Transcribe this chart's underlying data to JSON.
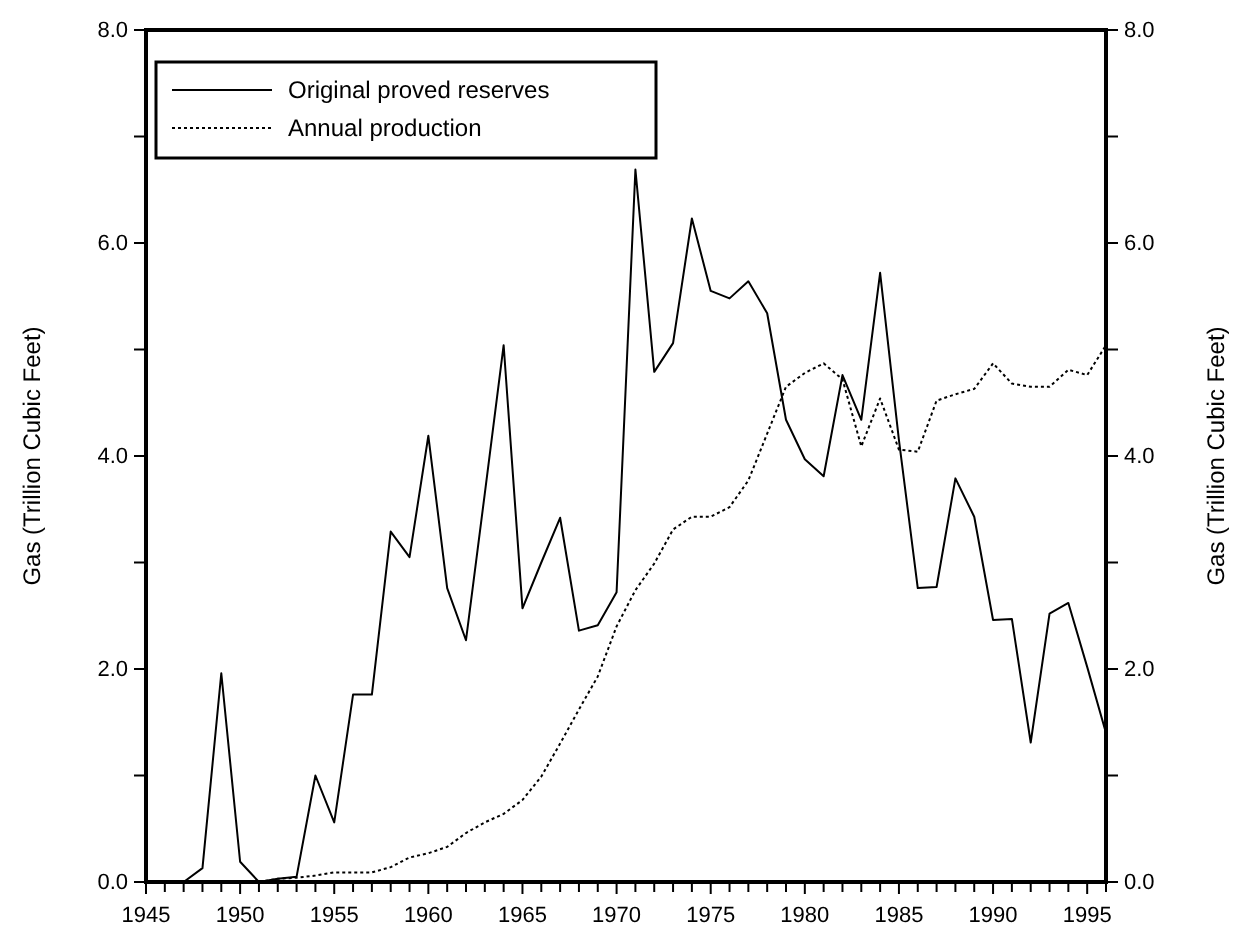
{
  "chart_data": {
    "type": "line",
    "ylabel": "Gas (Trillion Cubic Feet)",
    "y2label": "Gas (Trillion Cubic Feet)",
    "xlim": [
      1945,
      1996
    ],
    "xticks": [
      1945,
      {
        "value": 1946,
        "label": null
      },
      {
        "value": 1947,
        "label": null
      },
      {
        "value": 1948,
        "label": null
      },
      {
        "value": 1949,
        "label": null
      },
      1950,
      {
        "value": 1951,
        "label": null
      },
      {
        "value": 1952,
        "label": null
      },
      {
        "value": 1953,
        "label": null
      },
      {
        "value": 1954,
        "label": null
      },
      1955,
      {
        "value": 1956,
        "label": null
      },
      {
        "value": 1957,
        "label": null
      },
      {
        "value": 1958,
        "label": null
      },
      {
        "value": 1959,
        "label": null
      },
      1960,
      {
        "value": 1961,
        "label": null
      },
      {
        "value": 1962,
        "label": null
      },
      {
        "value": 1963,
        "label": null
      },
      {
        "value": 1964,
        "label": null
      },
      1965,
      {
        "value": 1966,
        "label": null
      },
      {
        "value": 1967,
        "label": null
      },
      {
        "value": 1968,
        "label": null
      },
      {
        "value": 1969,
        "label": null
      },
      1970,
      {
        "value": 1971,
        "label": null
      },
      {
        "value": 1972,
        "label": null
      },
      {
        "value": 1973,
        "label": null
      },
      {
        "value": 1974,
        "label": null
      },
      1975,
      {
        "value": 1976,
        "label": null
      },
      {
        "value": 1977,
        "label": null
      },
      {
        "value": 1978,
        "label": null
      },
      {
        "value": 1979,
        "label": null
      },
      1980,
      {
        "value": 1981,
        "label": null
      },
      {
        "value": 1982,
        "label": null
      },
      {
        "value": 1983,
        "label": null
      },
      {
        "value": 1984,
        "label": null
      },
      1985,
      {
        "value": 1986,
        "label": null
      },
      {
        "value": 1987,
        "label": null
      },
      {
        "value": 1988,
        "label": null
      },
      {
        "value": 1989,
        "label": null
      },
      1990,
      {
        "value": 1991,
        "label": null
      },
      {
        "value": 1992,
        "label": null
      },
      {
        "value": 1993,
        "label": null
      },
      {
        "value": 1994,
        "label": null
      },
      1995,
      {
        "value": 1996,
        "label": null
      }
    ],
    "ylim": [
      0,
      8
    ],
    "yticks": [
      {
        "value": 0,
        "label": "0.0"
      },
      {
        "value": 1,
        "label": null
      },
      {
        "value": 2,
        "label": "2.0"
      },
      {
        "value": 3,
        "label": null
      },
      {
        "value": 4,
        "label": "4.0"
      },
      {
        "value": 5,
        "label": null
      },
      {
        "value": 6,
        "label": "6.0"
      },
      {
        "value": 7,
        "label": null
      },
      {
        "value": 8,
        "label": "8.0"
      }
    ],
    "y2lim": [
      0,
      8
    ],
    "y2ticks": [
      {
        "value": 0,
        "label": "0.0"
      },
      {
        "value": 1,
        "label": null
      },
      {
        "value": 2,
        "label": "2.0"
      },
      {
        "value": 3,
        "label": null
      },
      {
        "value": 4,
        "label": "4.0"
      },
      {
        "value": 5,
        "label": null
      },
      {
        "value": 6,
        "label": "6.0"
      },
      {
        "value": 7,
        "label": null
      },
      {
        "value": 8,
        "label": "8.0"
      }
    ],
    "grid": false,
    "legend": "top left",
    "marker": "none",
    "series": [
      {
        "name": "Original proved reserves",
        "color": "#000000",
        "line_style": "solid",
        "x": [
          1947,
          1948,
          1949,
          1950,
          1951,
          1952,
          1953,
          1954,
          1955,
          1956,
          1957,
          1958,
          1959,
          1960,
          1961,
          1962,
          1963,
          1964,
          1965,
          1966,
          1967,
          1968,
          1969,
          1970,
          1971,
          1972,
          1973,
          1974,
          1975,
          1976,
          1977,
          1978,
          1979,
          1980,
          1981,
          1982,
          1983,
          1984,
          1985,
          1986,
          1987,
          1988,
          1989,
          1990,
          1991,
          1992,
          1993,
          1994,
          1995,
          1996
        ],
        "values": [
          0,
          0.13,
          1.96,
          0.19,
          0,
          0.03,
          0.05,
          1.0,
          0.56,
          1.76,
          1.76,
          3.29,
          3.05,
          4.19,
          2.76,
          2.27,
          3.65,
          5.04,
          2.57,
          3.0,
          3.42,
          2.36,
          2.41,
          2.72,
          6.69,
          4.79,
          5.06,
          6.23,
          5.55,
          5.48,
          5.64,
          5.34,
          4.34,
          3.97,
          3.81,
          4.76,
          4.34,
          5.72,
          4.15,
          2.76,
          2.77,
          3.79,
          3.43,
          2.46,
          2.47,
          1.31,
          2.52,
          2.62,
          2.02,
          1.4
        ]
      },
      {
        "name": "Annual production",
        "color": "#000000",
        "line_style": "dotted",
        "x": [
          1951,
          1952,
          1953,
          1954,
          1955,
          1956,
          1957,
          1958,
          1959,
          1960,
          1961,
          1962,
          1963,
          1964,
          1965,
          1966,
          1967,
          1968,
          1969,
          1970,
          1971,
          1972,
          1973,
          1974,
          1975,
          1976,
          1977,
          1978,
          1979,
          1980,
          1981,
          1982,
          1983,
          1984,
          1985,
          1986,
          1987,
          1988,
          1989,
          1990,
          1991,
          1992,
          1993,
          1994,
          1995,
          1996
        ],
        "values": [
          0,
          0.03,
          0.04,
          0.06,
          0.09,
          0.09,
          0.09,
          0.14,
          0.23,
          0.27,
          0.33,
          0.46,
          0.56,
          0.64,
          0.77,
          0.99,
          1.3,
          1.62,
          1.93,
          2.4,
          2.74,
          2.99,
          3.31,
          3.43,
          3.43,
          3.52,
          3.77,
          4.21,
          4.65,
          4.78,
          4.87,
          4.72,
          4.09,
          4.54,
          4.06,
          4.04,
          4.52,
          4.58,
          4.63,
          4.87,
          4.68,
          4.65,
          4.65,
          4.81,
          4.76,
          5.04
        ]
      }
    ]
  }
}
